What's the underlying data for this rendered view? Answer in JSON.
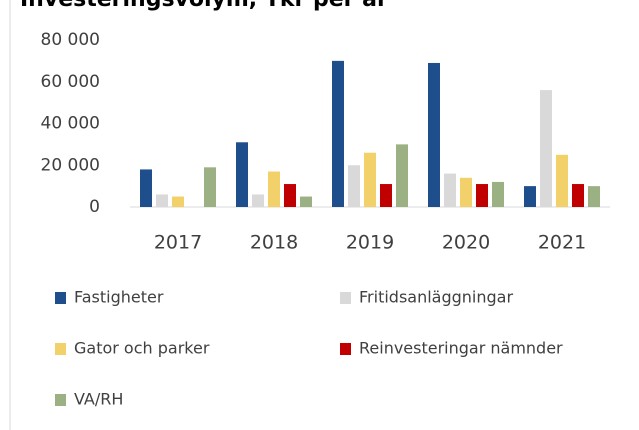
{
  "chart_data": {
    "type": "bar",
    "title": "Investeringsvolym, Tkr per år",
    "categories": [
      "2017",
      "2018",
      "2019",
      "2020",
      "2021"
    ],
    "series": [
      {
        "name": "Fastigheter",
        "color": "#1f4e8c",
        "values": [
          18000,
          31000,
          70000,
          69000,
          10000
        ]
      },
      {
        "name": "Fritidsanläggningar",
        "color": "#d9d9d9",
        "values": [
          6000,
          6000,
          20000,
          16000,
          56000
        ]
      },
      {
        "name": "Gator och parker",
        "color": "#f2d16b",
        "values": [
          5000,
          17000,
          26000,
          14000,
          25000
        ]
      },
      {
        "name": "Reinvesteringar nämnder",
        "color": "#c00000",
        "values": [
          0,
          11000,
          11000,
          11000,
          11000
        ]
      },
      {
        "name": "VA/RH",
        "color": "#9bb083",
        "values": [
          19000,
          5000,
          30000,
          12000,
          10000
        ]
      }
    ],
    "ylim": [
      0,
      80000
    ],
    "yticks": [
      {
        "value": 0,
        "label": "0"
      },
      {
        "value": 20000,
        "label": "20 000"
      },
      {
        "value": 40000,
        "label": "40 000"
      },
      {
        "value": 60000,
        "label": "60 000"
      },
      {
        "value": 80000,
        "label": "80 000"
      }
    ],
    "grid": false
  }
}
